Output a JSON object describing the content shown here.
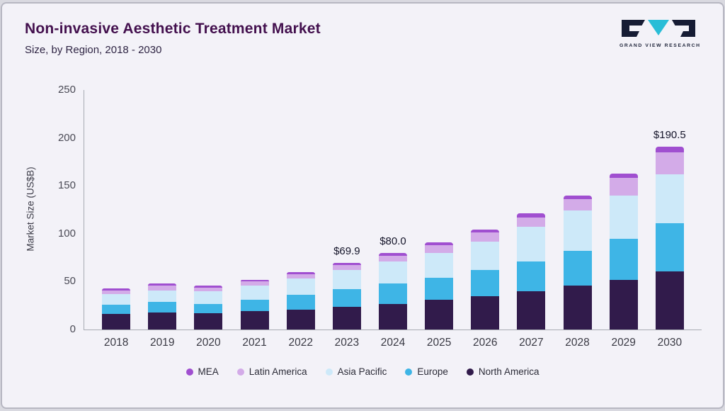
{
  "header": {
    "title": "Non-invasive Aesthetic Treatment Market",
    "subtitle": "Size, by Region, 2018 - 2030",
    "logo": {
      "text": "GRAND VIEW RESEARCH",
      "accent_color": "#29bdd7",
      "dark_color": "#161c34"
    }
  },
  "chart_data": {
    "type": "bar",
    "stacked": true,
    "title": "Non-invasive Aesthetic Treatment Market Size, by Region, 2018 - 2030",
    "ylabel": "Market Size (US$B)",
    "ylim": [
      0,
      250
    ],
    "yticks": [
      0,
      50,
      100,
      150,
      200,
      250
    ],
    "grid": false,
    "legend_position": "bottom",
    "categories": [
      "2018",
      "2019",
      "2020",
      "2021",
      "2022",
      "2023",
      "2024",
      "2025",
      "2026",
      "2027",
      "2028",
      "2029",
      "2030"
    ],
    "series": [
      {
        "name": "North America",
        "color": "#311b4b",
        "values": [
          16,
          18,
          17,
          19,
          21,
          24,
          27,
          31,
          35,
          40,
          46,
          52,
          61
        ]
      },
      {
        "name": "Europe",
        "color": "#3eb5e6",
        "values": [
          10,
          11,
          10,
          12,
          15,
          18,
          21,
          23,
          27,
          31,
          36,
          43,
          50
        ]
      },
      {
        "name": "Asia Pacific",
        "color": "#cde9f9",
        "values": [
          11,
          12,
          13,
          15,
          17,
          20,
          23,
          26,
          30,
          36,
          42,
          45,
          51
        ]
      },
      {
        "name": "Latin America",
        "color": "#d3abe8",
        "values": [
          4,
          5,
          4,
          4,
          5,
          5,
          6,
          8,
          9,
          10,
          12,
          18,
          23
        ]
      },
      {
        "name": "MEA",
        "color": "#a04fd0",
        "values": [
          2,
          2,
          2,
          2,
          2,
          2.9,
          3,
          3,
          3,
          4,
          4,
          5,
          5.5
        ]
      }
    ],
    "totals": [
      43,
      48,
      46,
      52,
      60,
      69.9,
      80,
      91,
      104,
      121,
      140,
      163,
      190.5
    ],
    "annotations": [
      {
        "category": "2023",
        "label": "$69.9"
      },
      {
        "category": "2024",
        "label": "$80.0"
      },
      {
        "category": "2030",
        "label": "$190.5"
      }
    ],
    "legend": [
      "MEA",
      "Latin America",
      "Asia Pacific",
      "Europe",
      "North America"
    ]
  }
}
